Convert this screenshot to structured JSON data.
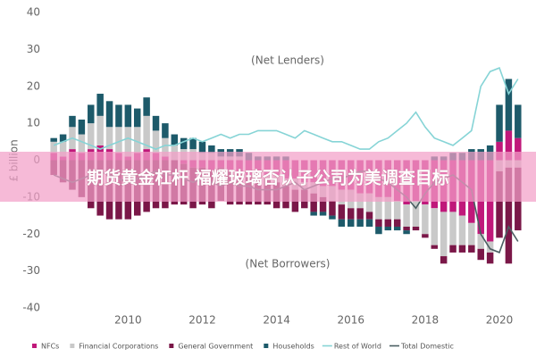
{
  "chart_data": {
    "type": "bar",
    "y_label": "£ billion",
    "annotations": [
      "(Net Lenders)",
      "(Net Borrowers)"
    ],
    "categories": [
      null,
      null,
      null,
      null,
      null,
      null,
      null,
      null,
      "2010",
      null,
      null,
      null,
      null,
      null,
      null,
      null,
      "2012",
      null,
      null,
      null,
      null,
      null,
      null,
      null,
      "2014",
      null,
      null,
      null,
      null,
      null,
      null,
      null,
      "2016",
      null,
      null,
      null,
      null,
      null,
      null,
      null,
      "2018",
      null,
      null,
      null,
      null,
      null,
      null,
      null,
      "2020",
      null,
      null
    ],
    "ylim": [
      -40,
      40
    ],
    "yticks": [
      40,
      30,
      20,
      10,
      0,
      -10,
      -20,
      -30,
      -40
    ],
    "grid": false,
    "series": [
      {
        "name": "NFCs",
        "color": "#c0187a",
        "kind": "bar",
        "values": [
          2,
          1,
          3,
          2,
          3,
          4,
          3,
          2,
          1,
          2,
          3,
          2,
          1,
          0,
          -1,
          -2,
          -2,
          -3,
          -2,
          -3,
          -3,
          -4,
          -3,
          -4,
          -4,
          -5,
          -5,
          -6,
          -6,
          -7,
          -7,
          -8,
          -8,
          -9,
          -9,
          -10,
          -10,
          -11,
          -12,
          -11,
          -12,
          -13,
          -14,
          -14,
          -15,
          -17,
          -20,
          -22,
          5,
          8,
          6
        ]
      },
      {
        "name": "Financial Corporations",
        "color": "#c9c9c9",
        "kind": "bar",
        "values": [
          3,
          4,
          6,
          5,
          7,
          8,
          6,
          7,
          8,
          7,
          9,
          6,
          5,
          4,
          3,
          3,
          2,
          2,
          1,
          1,
          1,
          0,
          -1,
          -1,
          -2,
          -2,
          -3,
          -2,
          -3,
          -3,
          -4,
          -4,
          -5,
          -4,
          -5,
          -6,
          -6,
          -5,
          -6,
          -7,
          -8,
          -10,
          -12,
          -9,
          -8,
          -6,
          -4,
          -3,
          -3,
          -2,
          -2
        ]
      },
      {
        "name": "General Government",
        "color": "#7a1748",
        "kind": "bar",
        "values": [
          -4,
          -6,
          -8,
          -10,
          -13,
          -15,
          -16,
          -16,
          -16,
          -15,
          -14,
          -13,
          -13,
          -12,
          -11,
          -11,
          -10,
          -10,
          -9,
          -9,
          -9,
          -8,
          -8,
          -7,
          -7,
          -6,
          -6,
          -5,
          -5,
          -4,
          -4,
          -4,
          -3,
          -3,
          -2,
          -2,
          -2,
          -2,
          -1,
          -1,
          -1,
          -1,
          -2,
          -2,
          -2,
          -2,
          -3,
          -3,
          -18,
          -26,
          -17
        ]
      },
      {
        "name": "Households",
        "color": "#1d5a6a",
        "kind": "bar",
        "values": [
          1,
          2,
          3,
          4,
          5,
          6,
          7,
          6,
          6,
          5,
          5,
          4,
          4,
          3,
          3,
          3,
          3,
          2,
          2,
          2,
          2,
          2,
          1,
          1,
          1,
          1,
          0,
          0,
          -1,
          -1,
          -1,
          -2,
          -2,
          -2,
          -2,
          -2,
          -1,
          -1,
          -1,
          0,
          0,
          1,
          1,
          2,
          2,
          3,
          3,
          4,
          10,
          14,
          9
        ]
      },
      {
        "name": "Rest of World",
        "color": "#86d4d6",
        "kind": "line",
        "values": [
          4,
          5,
          6,
          5,
          4,
          3,
          4,
          5,
          6,
          5,
          4,
          3,
          4,
          4,
          5,
          6,
          5,
          6,
          7,
          6,
          7,
          7,
          8,
          8,
          8,
          7,
          6,
          8,
          7,
          6,
          5,
          5,
          4,
          3,
          3,
          5,
          6,
          8,
          10,
          13,
          9,
          6,
          5,
          4,
          6,
          8,
          20,
          24,
          25,
          18,
          22
        ]
      },
      {
        "name": "Total Domestic",
        "color": "#4a5e62",
        "kind": "line",
        "values": [
          -4,
          -5,
          -6,
          -5,
          -4,
          -3,
          -4,
          -5,
          -6,
          -5,
          -4,
          -3,
          -4,
          -4,
          -5,
          -6,
          -5,
          -6,
          -7,
          -6,
          -7,
          -7,
          -8,
          -8,
          -8,
          -7,
          -6,
          -8,
          -7,
          -6,
          -5,
          -5,
          -4,
          -3,
          -3,
          -5,
          -6,
          -8,
          -10,
          -13,
          -9,
          -6,
          -5,
          -4,
          -6,
          -8,
          -20,
          -24,
          -25,
          -18,
          -22
        ]
      }
    ]
  },
  "banner": {
    "text": "期货黄金杠杆 福耀玻璃否认子公司为美调查目标"
  }
}
